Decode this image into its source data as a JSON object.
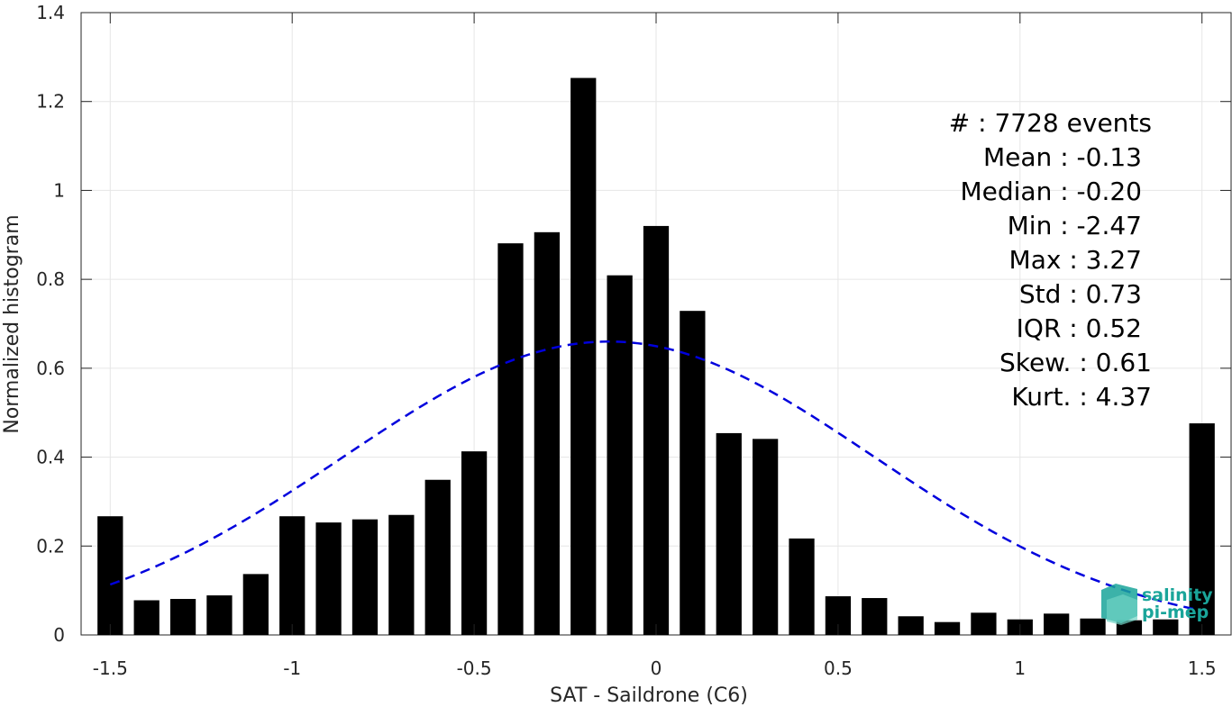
{
  "chart_data": {
    "type": "bar",
    "xlabel": "SAT - Saildrone (C6)",
    "ylabel": "Normalized histogram",
    "xlim": [
      -1.58,
      1.58
    ],
    "ylim": [
      0,
      1.4
    ],
    "xticks": [
      -1.5,
      -1,
      -0.5,
      0,
      0.5,
      1,
      1.5
    ],
    "xtick_labels": [
      "-1.5",
      "-1",
      "-0.5",
      "0",
      "0.5",
      "1",
      "1.5"
    ],
    "yticks": [
      0,
      0.2,
      0.4,
      0.6,
      0.8,
      1,
      1.2,
      1.4
    ],
    "ytick_labels": [
      "0",
      "0.2",
      "0.4",
      "0.6",
      "0.8",
      "1",
      "1.2",
      "1.4"
    ],
    "grid": true,
    "bar_width": 0.07,
    "x": [
      -1.5,
      -1.4,
      -1.3,
      -1.2,
      -1.1,
      -1.0,
      -0.9,
      -0.8,
      -0.7,
      -0.6,
      -0.5,
      -0.4,
      -0.3,
      -0.2,
      -0.1,
      0.0,
      0.1,
      0.2,
      0.3,
      0.4,
      0.5,
      0.6,
      0.7,
      0.8,
      0.9,
      1.0,
      1.1,
      1.2,
      1.3,
      1.4,
      1.5
    ],
    "values": [
      0.267,
      0.078,
      0.081,
      0.089,
      0.137,
      0.267,
      0.253,
      0.26,
      0.27,
      0.349,
      0.413,
      0.881,
      0.906,
      1.253,
      0.809,
      0.92,
      0.729,
      0.454,
      0.441,
      0.217,
      0.087,
      0.083,
      0.042,
      0.029,
      0.05,
      0.035,
      0.048,
      0.037,
      0.033,
      0.035,
      0.476
    ],
    "bar_color": "#000000",
    "fit": {
      "type": "gaussian",
      "mean": -0.13,
      "std": 0.73,
      "peak": 0.66,
      "color": "#0000dd",
      "style": "dashed"
    },
    "stats_lines": [
      "#  : 7728 events",
      "Mean : -0.13",
      "Median : -0.20",
      "Min : -2.47",
      "Max : 3.27",
      "Std : 0.73",
      "IQR : 0.52",
      "Skew. : 0.61",
      "Kurt. : 4.37"
    ]
  },
  "logo": {
    "line1": "salinity",
    "line2": "pi-mep",
    "color": "#1aa59a"
  }
}
